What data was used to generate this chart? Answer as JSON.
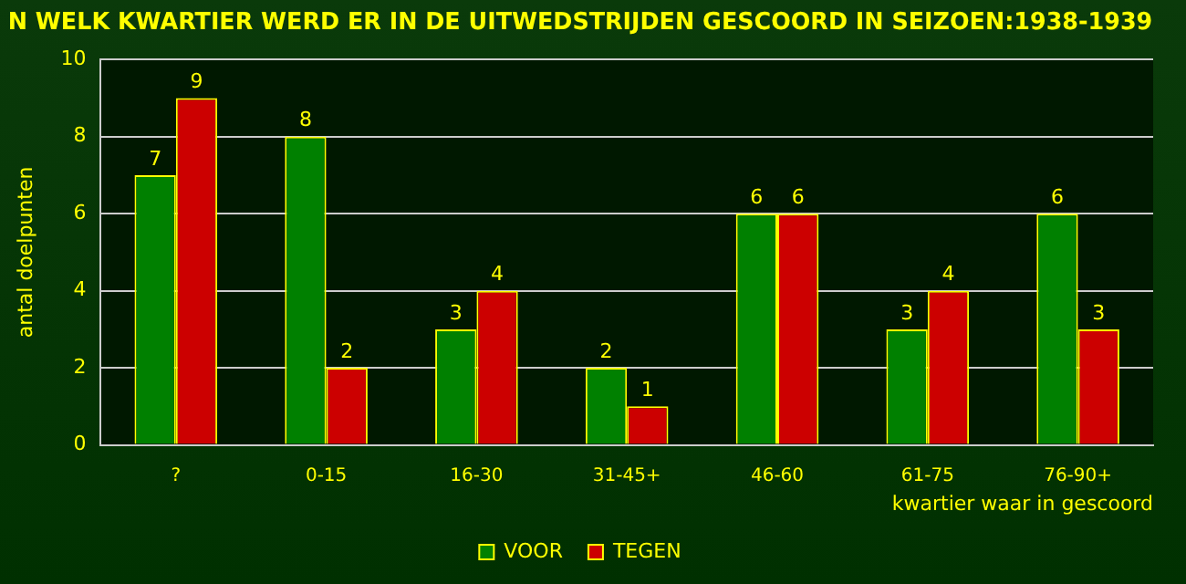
{
  "chart_data": {
    "type": "bar",
    "title": "N WELK KWARTIER WERD ER IN DE UITWEDSTRIJDEN GESCOORD IN SEIZOEN:1938-1939",
    "xlabel": "kwartier waar in gescoord",
    "ylabel": "antal doelpunten",
    "categories": [
      "?",
      "0-15",
      "16-30",
      "31-45+",
      "46-60",
      "61-75",
      "76-90+"
    ],
    "series": [
      {
        "name": "VOOR",
        "color": "#008000",
        "values": [
          7,
          8,
          3,
          2,
          6,
          3,
          6
        ]
      },
      {
        "name": "TEGEN",
        "color": "#cc0000",
        "values": [
          9,
          2,
          4,
          1,
          6,
          4,
          3
        ]
      }
    ],
    "ylim": [
      0,
      10
    ],
    "yticks": [
      0,
      2,
      4,
      6,
      8,
      10
    ],
    "grid": "y",
    "legend": "bottom",
    "data_labels": true
  }
}
